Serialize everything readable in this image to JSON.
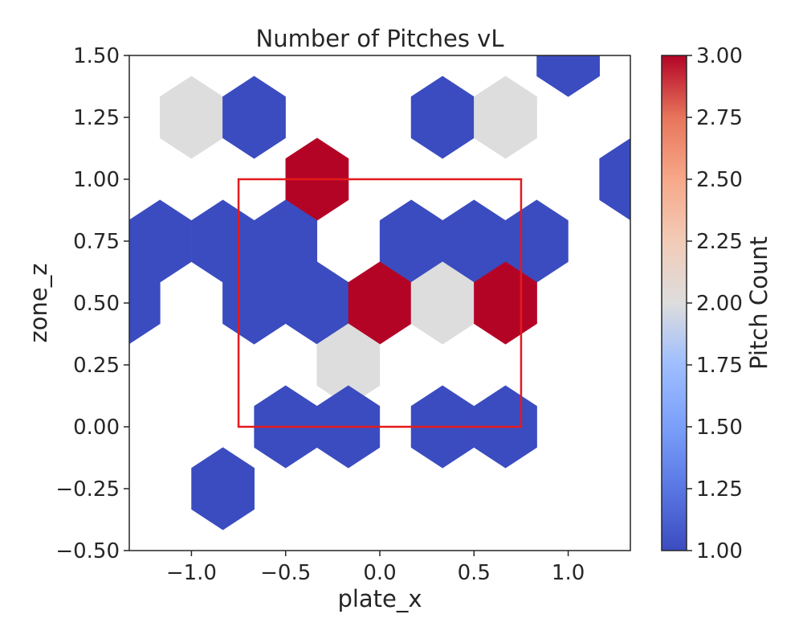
{
  "chart_data": {
    "type": "heatmap",
    "subtype": "hexbin",
    "title": "Number of Pitches vL",
    "xlabel": "plate_x",
    "ylabel": "zone_z",
    "xlim": [
      -1.33,
      1.33
    ],
    "ylim": [
      -0.5,
      1.5
    ],
    "x_ticks": [
      -1.0,
      -0.5,
      0.0,
      0.5,
      1.0
    ],
    "x_tick_labels": [
      "−1.0",
      "−0.5",
      "0.0",
      "0.5",
      "1.0"
    ],
    "y_ticks": [
      -0.5,
      -0.25,
      0.0,
      0.25,
      0.5,
      0.75,
      1.0,
      1.25,
      1.5
    ],
    "y_tick_labels": [
      "−0.50",
      "−0.25",
      "0.00",
      "0.25",
      "0.50",
      "0.75",
      "1.00",
      "1.25",
      "1.50"
    ],
    "colorbar": {
      "label": "Pitch Count",
      "colormap": "coolwarm",
      "range": [
        1.0,
        3.0
      ],
      "ticks": [
        1.0,
        1.25,
        1.5,
        1.75,
        2.0,
        2.25,
        2.5,
        2.75,
        3.0
      ],
      "tick_labels": [
        "1.00",
        "1.25",
        "1.50",
        "1.75",
        "2.00",
        "2.25",
        "2.50",
        "2.75",
        "3.00"
      ]
    },
    "hex_cells": [
      {
        "x": -1.0,
        "z": 1.25,
        "count": 2
      },
      {
        "x": -0.667,
        "z": 1.25,
        "count": 1
      },
      {
        "x": 0.333,
        "z": 1.25,
        "count": 1
      },
      {
        "x": 0.667,
        "z": 1.25,
        "count": 2
      },
      {
        "x": 1.0,
        "z": 1.5,
        "count": 1
      },
      {
        "x": -0.333,
        "z": 1.0,
        "count": 3
      },
      {
        "x": 1.333,
        "z": 1.0,
        "count": 1
      },
      {
        "x": -1.167,
        "z": 0.75,
        "count": 1
      },
      {
        "x": -0.833,
        "z": 0.75,
        "count": 1
      },
      {
        "x": -0.5,
        "z": 0.75,
        "count": 1
      },
      {
        "x": 0.167,
        "z": 0.75,
        "count": 1
      },
      {
        "x": 0.5,
        "z": 0.75,
        "count": 1
      },
      {
        "x": 0.833,
        "z": 0.75,
        "count": 1
      },
      {
        "x": -1.333,
        "z": 0.5,
        "count": 1
      },
      {
        "x": -0.667,
        "z": 0.5,
        "count": 1
      },
      {
        "x": -0.333,
        "z": 0.5,
        "count": 1
      },
      {
        "x": 0.0,
        "z": 0.5,
        "count": 3
      },
      {
        "x": 0.333,
        "z": 0.5,
        "count": 2
      },
      {
        "x": 0.667,
        "z": 0.5,
        "count": 3
      },
      {
        "x": -0.167,
        "z": 0.25,
        "count": 2
      },
      {
        "x": -0.5,
        "z": 0.0,
        "count": 1
      },
      {
        "x": -0.167,
        "z": 0.0,
        "count": 1
      },
      {
        "x": 0.333,
        "z": 0.0,
        "count": 1
      },
      {
        "x": 0.667,
        "z": 0.0,
        "count": 1
      },
      {
        "x": -0.833,
        "z": -0.25,
        "count": 1
      }
    ],
    "strike_zone": {
      "x0": -0.75,
      "x1": 0.75,
      "z0": 0.0,
      "z1": 1.0,
      "color": "#e41a1c"
    },
    "colors": {
      "low": "#3b4cc0",
      "mid": "#dddddd",
      "high": "#b40426"
    }
  }
}
